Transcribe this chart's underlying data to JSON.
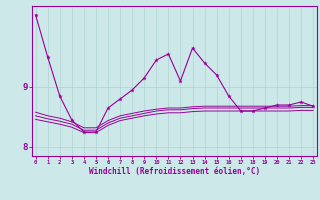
{
  "x": [
    0,
    1,
    2,
    3,
    4,
    5,
    6,
    7,
    8,
    9,
    10,
    11,
    12,
    13,
    14,
    15,
    16,
    17,
    18,
    19,
    20,
    21,
    22,
    23
  ],
  "line1": [
    10.2,
    9.5,
    8.85,
    8.45,
    8.25,
    8.25,
    8.65,
    8.8,
    8.95,
    9.15,
    9.45,
    9.55,
    9.1,
    9.65,
    9.4,
    9.2,
    8.85,
    8.6,
    8.6,
    8.65,
    8.7,
    8.7,
    8.75,
    8.68
  ],
  "line2": [
    8.58,
    8.52,
    8.48,
    8.42,
    8.32,
    8.32,
    8.44,
    8.52,
    8.56,
    8.6,
    8.63,
    8.65,
    8.65,
    8.67,
    8.68,
    8.68,
    8.68,
    8.68,
    8.68,
    8.68,
    8.68,
    8.68,
    8.69,
    8.69
  ],
  "line3": [
    8.52,
    8.47,
    8.43,
    8.38,
    8.28,
    8.28,
    8.4,
    8.48,
    8.52,
    8.56,
    8.6,
    8.62,
    8.62,
    8.64,
    8.65,
    8.65,
    8.65,
    8.65,
    8.65,
    8.65,
    8.65,
    8.65,
    8.66,
    8.66
  ],
  "line4": [
    8.46,
    8.42,
    8.38,
    8.33,
    8.24,
    8.24,
    8.36,
    8.44,
    8.48,
    8.52,
    8.55,
    8.57,
    8.57,
    8.59,
    8.6,
    8.6,
    8.6,
    8.6,
    8.6,
    8.6,
    8.6,
    8.6,
    8.61,
    8.61
  ],
  "color": "#990099",
  "bg_color": "#cce8e8",
  "yticks": [
    8,
    9
  ],
  "xlim": [
    -0.3,
    23.3
  ],
  "ylim": [
    7.85,
    10.35
  ],
  "xlabel": "Windchill (Refroidissement éolien,°C)"
}
